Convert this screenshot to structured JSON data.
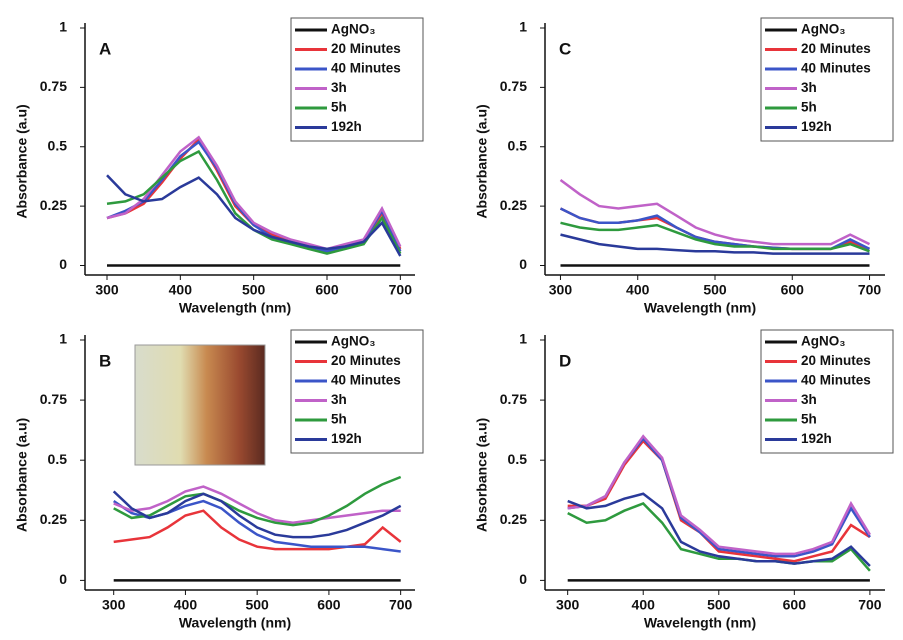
{
  "chart_data": [
    {
      "type": "line",
      "label": "A",
      "xlabel": "Wavelength (nm)",
      "ylabel": "Absorbance (a.u)",
      "x": [
        300,
        325,
        350,
        375,
        400,
        425,
        450,
        475,
        500,
        525,
        550,
        575,
        600,
        625,
        650,
        675,
        700
      ],
      "xlim": [
        270,
        720
      ],
      "ylim": [
        -0.04,
        1
      ],
      "xticks": [
        300,
        400,
        500,
        600,
        700
      ],
      "yticks": [
        0,
        0.25,
        0.5,
        0.75,
        1
      ],
      "legend": "upper right",
      "series": [
        {
          "name": "AgNO₃",
          "color": "#111111",
          "values": [
            0,
            0,
            0,
            0,
            0,
            0,
            0,
            0,
            0,
            0,
            0,
            0,
            0,
            0,
            0,
            0,
            0
          ]
        },
        {
          "name": "20 Minutes",
          "color": "#e8343a",
          "values": [
            0.2,
            0.22,
            0.26,
            0.35,
            0.45,
            0.53,
            0.4,
            0.25,
            0.17,
            0.13,
            0.1,
            0.08,
            0.06,
            0.08,
            0.1,
            0.22,
            0.07
          ]
        },
        {
          "name": "40 Minutes",
          "color": "#3b55c8",
          "values": [
            0.2,
            0.23,
            0.27,
            0.36,
            0.46,
            0.52,
            0.41,
            0.26,
            0.17,
            0.12,
            0.1,
            0.08,
            0.06,
            0.08,
            0.1,
            0.23,
            0.06
          ]
        },
        {
          "name": "3h",
          "color": "#c062c8",
          "values": [
            0.2,
            0.22,
            0.28,
            0.38,
            0.48,
            0.54,
            0.42,
            0.27,
            0.18,
            0.14,
            0.11,
            0.09,
            0.07,
            0.09,
            0.11,
            0.24,
            0.08
          ]
        },
        {
          "name": "5h",
          "color": "#2e9a3e",
          "values": [
            0.26,
            0.27,
            0.3,
            0.37,
            0.44,
            0.48,
            0.36,
            0.22,
            0.15,
            0.11,
            0.09,
            0.07,
            0.05,
            0.07,
            0.09,
            0.2,
            0.05
          ]
        },
        {
          "name": "192h",
          "color": "#2a3a9a",
          "values": [
            0.38,
            0.3,
            0.27,
            0.28,
            0.33,
            0.37,
            0.3,
            0.2,
            0.15,
            0.12,
            0.1,
            0.08,
            0.07,
            0.08,
            0.1,
            0.18,
            0.04
          ]
        }
      ]
    },
    {
      "type": "line",
      "label": "C",
      "xlabel": "Wavelength (nm)",
      "ylabel": "Absorbance (a.u)",
      "x": [
        300,
        325,
        350,
        375,
        400,
        425,
        450,
        475,
        500,
        525,
        550,
        575,
        600,
        625,
        650,
        675,
        700
      ],
      "xlim": [
        280,
        720
      ],
      "ylim": [
        -0.04,
        1
      ],
      "xticks": [
        300,
        400,
        500,
        600,
        700
      ],
      "yticks": [
        0,
        0.25,
        0.5,
        0.75,
        1
      ],
      "legend": "upper right",
      "series": [
        {
          "name": "AgNO₃",
          "color": "#111111",
          "values": [
            0,
            0,
            0,
            0,
            0,
            0,
            0,
            0,
            0,
            0,
            0,
            0,
            0,
            0,
            0,
            0,
            0
          ]
        },
        {
          "name": "20 Minutes",
          "color": "#e8343a",
          "values": [
            0.24,
            0.2,
            0.18,
            0.18,
            0.19,
            0.2,
            0.16,
            0.12,
            0.1,
            0.09,
            0.08,
            0.075,
            0.07,
            0.07,
            0.07,
            0.1,
            0.07
          ]
        },
        {
          "name": "40 Minutes",
          "color": "#3b55c8",
          "values": [
            0.24,
            0.2,
            0.18,
            0.18,
            0.19,
            0.21,
            0.16,
            0.12,
            0.1,
            0.09,
            0.08,
            0.075,
            0.07,
            0.07,
            0.07,
            0.11,
            0.07
          ]
        },
        {
          "name": "3h",
          "color": "#c062c8",
          "values": [
            0.36,
            0.3,
            0.25,
            0.24,
            0.25,
            0.26,
            0.21,
            0.16,
            0.13,
            0.11,
            0.1,
            0.09,
            0.09,
            0.09,
            0.09,
            0.13,
            0.09
          ]
        },
        {
          "name": "5h",
          "color": "#2e9a3e",
          "values": [
            0.18,
            0.16,
            0.15,
            0.15,
            0.16,
            0.17,
            0.14,
            0.11,
            0.09,
            0.08,
            0.08,
            0.07,
            0.07,
            0.07,
            0.07,
            0.09,
            0.06
          ]
        },
        {
          "name": "192h",
          "color": "#2a3a9a",
          "values": [
            0.13,
            0.11,
            0.09,
            0.08,
            0.07,
            0.07,
            0.065,
            0.06,
            0.06,
            0.055,
            0.055,
            0.05,
            0.05,
            0.05,
            0.05,
            0.05,
            0.05
          ]
        }
      ]
    },
    {
      "type": "line",
      "label": "B",
      "xlabel": "Wavelength (nm)",
      "ylabel": "Absorbance (a.u)",
      "x": [
        300,
        325,
        350,
        375,
        400,
        425,
        450,
        475,
        500,
        525,
        550,
        575,
        600,
        625,
        650,
        675,
        700
      ],
      "xlim": [
        260,
        720
      ],
      "ylim": [
        -0.04,
        1
      ],
      "xticks": [
        300,
        400,
        500,
        600,
        700
      ],
      "yticks": [
        0,
        0.25,
        0.5,
        0.75,
        1
      ],
      "legend": "upper right",
      "series": [
        {
          "name": "AgNO₃",
          "color": "#111111",
          "values": [
            0,
            0,
            0,
            0,
            0,
            0,
            0,
            0,
            0,
            0,
            0,
            0,
            0,
            0,
            0,
            0,
            0
          ]
        },
        {
          "name": "20 Minutes",
          "color": "#e8343a",
          "values": [
            0.16,
            0.17,
            0.18,
            0.22,
            0.27,
            0.29,
            0.22,
            0.17,
            0.14,
            0.13,
            0.13,
            0.13,
            0.13,
            0.14,
            0.15,
            0.22,
            0.16
          ]
        },
        {
          "name": "40 Minutes",
          "color": "#3b55c8",
          "values": [
            0.33,
            0.28,
            0.26,
            0.28,
            0.31,
            0.33,
            0.3,
            0.24,
            0.19,
            0.16,
            0.15,
            0.14,
            0.14,
            0.14,
            0.14,
            0.13,
            0.12
          ]
        },
        {
          "name": "3h",
          "color": "#c062c8",
          "values": [
            0.32,
            0.29,
            0.3,
            0.33,
            0.37,
            0.39,
            0.36,
            0.32,
            0.28,
            0.25,
            0.24,
            0.25,
            0.26,
            0.27,
            0.28,
            0.29,
            0.29
          ]
        },
        {
          "name": "5h",
          "color": "#2e9a3e",
          "values": [
            0.3,
            0.26,
            0.27,
            0.31,
            0.35,
            0.36,
            0.33,
            0.29,
            0.26,
            0.24,
            0.23,
            0.24,
            0.27,
            0.31,
            0.36,
            0.4,
            0.43
          ]
        },
        {
          "name": "192h",
          "color": "#2a3a9a",
          "values": [
            0.37,
            0.3,
            0.26,
            0.28,
            0.33,
            0.36,
            0.33,
            0.27,
            0.22,
            0.19,
            0.18,
            0.18,
            0.19,
            0.21,
            0.24,
            0.27,
            0.31
          ]
        }
      ]
    },
    {
      "type": "line",
      "label": "D",
      "xlabel": "Wavelength (nm)",
      "ylabel": "Absorbance (a.u)",
      "x": [
        300,
        325,
        350,
        375,
        400,
        425,
        450,
        475,
        500,
        525,
        550,
        575,
        600,
        625,
        650,
        675,
        700
      ],
      "xlim": [
        270,
        720
      ],
      "ylim": [
        -0.04,
        1
      ],
      "xticks": [
        300,
        400,
        500,
        600,
        700
      ],
      "yticks": [
        0,
        0.25,
        0.5,
        0.75,
        1
      ],
      "legend": "upper right",
      "series": [
        {
          "name": "AgNO₃",
          "color": "#111111",
          "values": [
            0,
            0,
            0,
            0,
            0,
            0,
            0,
            0,
            0,
            0,
            0,
            0,
            0,
            0,
            0,
            0,
            0
          ]
        },
        {
          "name": "20 Minutes",
          "color": "#e8343a",
          "values": [
            0.31,
            0.31,
            0.34,
            0.48,
            0.58,
            0.5,
            0.25,
            0.2,
            0.12,
            0.11,
            0.1,
            0.09,
            0.08,
            0.1,
            0.12,
            0.23,
            0.18
          ]
        },
        {
          "name": "40 Minutes",
          "color": "#3b55c8",
          "values": [
            0.3,
            0.31,
            0.35,
            0.49,
            0.59,
            0.5,
            0.26,
            0.2,
            0.13,
            0.12,
            0.11,
            0.1,
            0.1,
            0.12,
            0.15,
            0.3,
            0.18
          ]
        },
        {
          "name": "3h",
          "color": "#c062c8",
          "values": [
            0.3,
            0.31,
            0.35,
            0.49,
            0.6,
            0.51,
            0.27,
            0.21,
            0.14,
            0.13,
            0.12,
            0.11,
            0.11,
            0.13,
            0.16,
            0.32,
            0.19
          ]
        },
        {
          "name": "5h",
          "color": "#2e9a3e",
          "values": [
            0.28,
            0.24,
            0.25,
            0.29,
            0.32,
            0.24,
            0.13,
            0.11,
            0.09,
            0.09,
            0.08,
            0.08,
            0.07,
            0.08,
            0.08,
            0.13,
            0.04
          ]
        },
        {
          "name": "192h",
          "color": "#2a3a9a",
          "values": [
            0.33,
            0.3,
            0.31,
            0.34,
            0.36,
            0.3,
            0.16,
            0.12,
            0.1,
            0.09,
            0.08,
            0.08,
            0.07,
            0.08,
            0.09,
            0.14,
            0.06
          ]
        }
      ]
    }
  ]
}
